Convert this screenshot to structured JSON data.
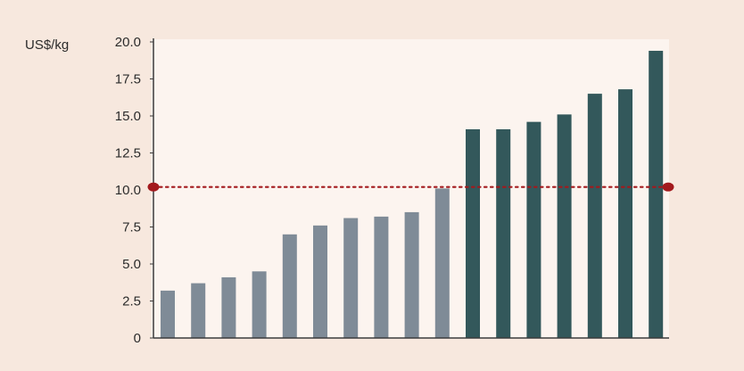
{
  "chart_data": {
    "type": "bar",
    "y_unit_label": "US$/kg",
    "ylim": [
      0,
      20
    ],
    "yticks": [
      "0",
      "2.5",
      "5.0",
      "7.5",
      "10.0",
      "12.5",
      "15.0",
      "17.5",
      "20.0"
    ],
    "values": [
      3.2,
      3.7,
      4.1,
      4.5,
      7.0,
      7.6,
      8.1,
      8.2,
      8.5,
      10.1,
      14.1,
      14.1,
      14.6,
      15.1,
      16.5,
      16.8,
      19.4
    ],
    "bar_groups": [
      "light",
      "light",
      "light",
      "light",
      "light",
      "light",
      "light",
      "light",
      "light",
      "light",
      "dark",
      "dark",
      "dark",
      "dark",
      "dark",
      "dark",
      "dark"
    ],
    "reference_line": {
      "value": 10.2,
      "style": "dotted",
      "color": "#a3191d"
    },
    "colors": {
      "background": "#f7e8de",
      "plot_background": "#fcf4ef",
      "light_bar": "#7f8b97",
      "dark_bar": "#33585b",
      "axis": "#3a3a3a"
    },
    "grid": false,
    "legend": "none"
  }
}
